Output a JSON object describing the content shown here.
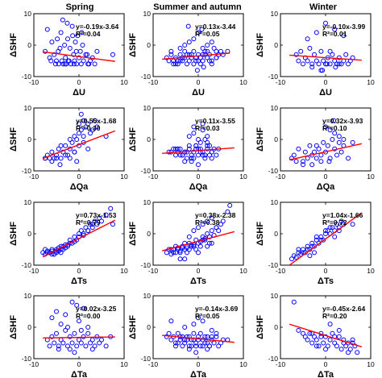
{
  "column_titles": [
    "Spring",
    "Summer and autumn",
    "Winter"
  ],
  "row_xlabels": [
    "ΔU",
    "ΔQa",
    "ΔTs",
    "ΔTa"
  ],
  "ylabel": "ΔSHF",
  "xticks": [
    -10,
    0,
    10
  ],
  "yticks": [
    -10,
    0,
    10
  ],
  "xlim": [
    -10,
    10
  ],
  "ylim": [
    -10,
    10
  ],
  "colors": {
    "points": "#0000ff",
    "fit": "#ff0000",
    "axes": "#000000"
  },
  "chart_data": [
    {
      "type": "scatter",
      "row": 0,
      "col": 0,
      "title": "Spring",
      "xlabel": "ΔU",
      "ylabel": "ΔSHF",
      "slope": -0.19,
      "intercept": -3.64,
      "equation": "y=-0.19x-3.64",
      "r2": "R²=0.04",
      "fit_x": [
        -8,
        8
      ],
      "x": [
        -7.5,
        -7,
        -6.5,
        -6,
        -5.5,
        -5,
        -4.8,
        -4.5,
        -4.2,
        -4,
        -3.8,
        -3.5,
        -3.2,
        -3,
        -2.8,
        -2.5,
        -2.2,
        -2,
        -1.8,
        -1.5,
        -1.2,
        -1,
        -0.8,
        -0.5,
        -0.3,
        0,
        0.3,
        0.5,
        0.8,
        1,
        1.5,
        2,
        2.5,
        3,
        3.5,
        4,
        -3.6,
        -2.6,
        -1.4,
        -0.6,
        0.6,
        1.8,
        -6.2,
        -5.2,
        -3.1,
        -1.1,
        2.2,
        7.5,
        -4.6,
        -2.4
      ],
      "y": [
        -2,
        5,
        -4,
        1,
        -3,
        -5,
        2,
        -6,
        -1,
        4,
        -5,
        -6,
        0,
        -4,
        -6,
        2,
        -5,
        -1,
        -6,
        6,
        -3,
        -5,
        1,
        -6,
        3,
        -4,
        -2,
        -6,
        0,
        -5,
        -3,
        -6,
        -5,
        -4,
        -6,
        -2,
        8,
        7,
        3,
        -2,
        4,
        -3,
        -5,
        -6,
        -6,
        -6,
        -6,
        -3,
        -2,
        -5
      ]
    },
    {
      "type": "scatter",
      "row": 0,
      "col": 1,
      "title": "Summer and autumn",
      "xlabel": "ΔU",
      "ylabel": "ΔSHF",
      "slope": 0.13,
      "intercept": -3.44,
      "equation": "y=0.13x-3.44",
      "r2": "R²=0.05",
      "fit_x": [
        -8,
        7
      ],
      "x": [
        -7,
        -6.5,
        -6,
        -5.5,
        -5,
        -4.5,
        -4,
        -3.5,
        -3,
        -2.5,
        -2,
        -1.5,
        -1,
        -0.5,
        0,
        0.5,
        1,
        1.5,
        2,
        2.5,
        3,
        3.5,
        4,
        4.5,
        5,
        5.5,
        -6,
        -5,
        -4,
        -3,
        -2,
        -1,
        0,
        1,
        2,
        3,
        4,
        -5.5,
        -4.5,
        -3.5,
        -2.5,
        -1.5,
        -0.5,
        0.5,
        1.5,
        2.5,
        -3,
        -1,
        1,
        3,
        0,
        -2,
        2,
        -4,
        4,
        6.5,
        -2.2,
        0.8,
        -0.2,
        1.2
      ],
      "y": [
        -4,
        -5,
        -3,
        -5,
        -4,
        -6,
        -3,
        -5,
        -4,
        -3,
        -5,
        -4,
        -2,
        -5,
        -3,
        -4,
        -5,
        -2,
        -4,
        -3,
        -5,
        -1,
        -4,
        -3,
        -2,
        -3,
        -2,
        -6,
        -5,
        -2,
        -3,
        -6,
        -5,
        -3,
        -2,
        -6,
        -2,
        -6,
        -5,
        -4,
        -6,
        -3,
        -4,
        -6,
        -3,
        -5,
        0,
        2,
        -1,
        1,
        4,
        1,
        0,
        -1,
        -4,
        -2,
        6,
        5,
        -8,
        -7
      ]
    },
    {
      "type": "scatter",
      "row": 0,
      "col": 2,
      "title": "Winter",
      "xlabel": "ΔU",
      "ylabel": "ΔSHF",
      "slope": -0.1,
      "intercept": -3.99,
      "equation": "y=-0.10x-3.99",
      "r2": "R²=0.01",
      "fit_x": [
        -8,
        8
      ],
      "x": [
        -6.5,
        -6,
        -5.5,
        -5,
        -4.5,
        -4,
        -3.5,
        -3,
        -2.5,
        -2,
        -1.5,
        -1,
        -0.5,
        0,
        0.5,
        1,
        1.5,
        2,
        2.5,
        3,
        3.5,
        4,
        4.5,
        5,
        5.5,
        6,
        -4,
        -2,
        0,
        2,
        4,
        -3,
        -1,
        1,
        3,
        0.3,
        -0.7,
        2.2
      ],
      "y": [
        -3,
        -5,
        -2,
        -6,
        -4,
        -5,
        -1,
        -6,
        -3,
        -5,
        -6,
        -2,
        -5,
        -6,
        -4,
        -6,
        -3,
        -5,
        -6,
        -4,
        -6,
        -5,
        -3,
        -6,
        -5,
        -4,
        2,
        4,
        7,
        5,
        3,
        -7,
        -8,
        -2,
        -6,
        -6,
        -8,
        -7
      ]
    },
    {
      "type": "scatter",
      "row": 1,
      "col": 0,
      "title": "",
      "xlabel": "ΔQa",
      "ylabel": "ΔSHF",
      "slope": 0.55,
      "intercept": -1.68,
      "equation": "y=0.55x-1.68",
      "r2": "R²=0.30",
      "fit_x": [
        -8,
        8
      ],
      "x": [
        -7.5,
        -7,
        -6.5,
        -6,
        -5.5,
        -5,
        -4.5,
        -4,
        -3.5,
        -3,
        -2.5,
        -2,
        -1.5,
        -1,
        -0.5,
        0,
        0.5,
        1,
        1.5,
        2,
        2.5,
        3,
        3.5,
        4,
        -6,
        -5,
        -4,
        -3,
        -2,
        -1,
        0,
        1,
        2,
        -2,
        -1,
        0,
        1,
        0.5,
        -0.5,
        6,
        -7.5,
        -4.2
      ],
      "y": [
        -6,
        -5,
        -6,
        -4,
        -6,
        -5,
        -3,
        -6,
        -4,
        -2,
        -5,
        -3,
        -1,
        -4,
        0,
        2,
        3,
        1,
        4,
        5,
        2,
        3,
        6,
        4,
        -7,
        -6,
        -2,
        -5,
        0,
        1,
        -2,
        -1,
        -3,
        -6,
        -4,
        5,
        6,
        8,
        -7,
        1,
        -6,
        -8
      ]
    },
    {
      "type": "scatter",
      "row": 1,
      "col": 1,
      "title": "",
      "xlabel": "ΔQa",
      "ylabel": "ΔSHF",
      "slope": 0.11,
      "intercept": -3.55,
      "equation": "y=0.11x-3.55",
      "r2": "R²=0.03",
      "fit_x": [
        -8,
        8
      ],
      "x": [
        -6,
        -5.5,
        -5,
        -4.5,
        -4,
        -3.5,
        -3,
        -2.5,
        -2,
        -1.5,
        -1,
        -0.5,
        0,
        0.5,
        1,
        1.5,
        2,
        2.5,
        3,
        3.5,
        4,
        -5,
        -4,
        -3,
        -2,
        -1,
        0,
        1,
        2,
        3,
        -4.5,
        -3.5,
        -2.5,
        -1.5,
        -0.5,
        0.5,
        1.5,
        2.5,
        -2,
        -1,
        0,
        1,
        2,
        -3,
        0,
        3,
        -1,
        1,
        0.5,
        -0.5,
        1.5,
        2,
        -1.5,
        4.5,
        -6.5
      ],
      "y": [
        -4,
        -3,
        -5,
        -4,
        -3,
        -5,
        -4,
        -6,
        -3,
        -5,
        -4,
        -2,
        -5,
        -3,
        -4,
        -6,
        -3,
        -5,
        -4,
        -3,
        -5,
        -3,
        -5,
        -4,
        -2,
        -6,
        -3,
        -5,
        -2,
        -4,
        -3,
        -5,
        -4,
        -6,
        -3,
        -4,
        -5,
        -2,
        1,
        2,
        0,
        3,
        1,
        -7,
        -8,
        -6,
        4,
        5,
        -1,
        -2,
        0,
        -1,
        -7,
        -3,
        -4
      ]
    },
    {
      "type": "scatter",
      "row": 1,
      "col": 2,
      "title": "",
      "xlabel": "ΔQa",
      "ylabel": "ΔSHF",
      "slope": 0.32,
      "intercept": -3.93,
      "equation": "y=0.32x-3.93",
      "r2": "R²=0.10",
      "fit_x": [
        -8,
        8
      ],
      "x": [
        -7.5,
        -7,
        -6,
        -5,
        -4.5,
        -4,
        -3.5,
        -3,
        -2.5,
        -2,
        -1.5,
        -1,
        -0.5,
        0,
        0.5,
        1,
        1.5,
        2,
        2.5,
        3,
        3.5,
        4,
        -5,
        -3,
        -1,
        1,
        3,
        -2,
        0,
        2,
        4,
        5,
        6,
        -6.5,
        0.8,
        1.8
      ],
      "y": [
        -6,
        -5,
        -3,
        -7,
        -4,
        -6,
        -2,
        -5,
        -4,
        -6,
        -3,
        -5,
        -1,
        -4,
        -2,
        -6,
        0,
        -3,
        -5,
        -1,
        -4,
        -2,
        -8,
        -8,
        -7,
        3,
        1,
        -2,
        4,
        2,
        0,
        -6,
        -1,
        -7,
        -7,
        6
      ]
    },
    {
      "type": "scatter",
      "row": 2,
      "col": 0,
      "title": "",
      "xlabel": "ΔTs",
      "ylabel": "ΔSHF",
      "slope": 0.73,
      "intercept": -1.53,
      "equation": "y=0.73x-1.53",
      "r2": "R²=0.79",
      "fit_x": [
        -8,
        8
      ],
      "x": [
        -8,
        -7.5,
        -7,
        -6.5,
        -6,
        -5.5,
        -5,
        -4.5,
        -4,
        -3.5,
        -3,
        -2.5,
        -2,
        -1.5,
        -1,
        -0.5,
        0,
        0.5,
        1,
        1.5,
        2,
        2.5,
        3,
        3.5,
        4,
        4.5,
        5,
        6,
        7,
        -7,
        -6,
        -5,
        -4,
        -3,
        -2,
        -1,
        0,
        1,
        2,
        3,
        -7.5,
        -6.5,
        -5.5,
        -4.5,
        -3.5,
        -2.5,
        -6,
        -5,
        -4,
        7.5
      ],
      "y": [
        -6,
        -6.5,
        -5.5,
        -6,
        -5,
        -6.5,
        -5,
        -5.5,
        -4,
        -5,
        -3.5,
        -4,
        -2,
        -3,
        -1,
        -2,
        0,
        1,
        0,
        2,
        1,
        3,
        2,
        4,
        3,
        5,
        4,
        6,
        8,
        -6,
        -5.5,
        -6,
        -5,
        -4.5,
        -3,
        -2.5,
        -1,
        -0.5,
        1,
        3,
        -5,
        -6,
        -6.5,
        -4.5,
        -4,
        -3.5,
        -6.5,
        -5.5,
        -6,
        3
      ]
    },
    {
      "type": "scatter",
      "row": 2,
      "col": 1,
      "title": "",
      "xlabel": "ΔTs",
      "ylabel": "ΔSHF",
      "slope": 0.38,
      "intercept": -2.38,
      "equation": "y=0.38x-2.38",
      "r2": "R²=0.38",
      "fit_x": [
        -8,
        8
      ],
      "x": [
        -7,
        -6.5,
        -6,
        -5.5,
        -5,
        -4.5,
        -4,
        -3.5,
        -3,
        -2.5,
        -2,
        -1.5,
        -1,
        -0.5,
        0,
        0.5,
        1,
        1.5,
        2,
        2.5,
        3,
        3.5,
        4,
        4.5,
        5,
        -6,
        -5,
        -4,
        -3,
        -2,
        -1,
        0,
        1,
        2,
        3,
        -5.5,
        -4.5,
        -3.5,
        -2.5,
        -1.5,
        -0.5,
        0.5,
        1.5,
        2.5,
        0,
        1,
        2,
        -1,
        -2,
        3,
        4,
        5.5,
        6.5,
        7,
        -3,
        -4
      ],
      "y": [
        -6,
        -5,
        -6.5,
        -5,
        -6,
        -4.5,
        -5.5,
        -4,
        -5,
        -4.5,
        -3,
        -4,
        -3.5,
        -2,
        -3,
        -2.5,
        -1,
        -2,
        0,
        -1,
        1,
        -0.5,
        2,
        1,
        3,
        -5,
        -4,
        -6,
        -3,
        -5,
        -4,
        -6,
        -2,
        -4,
        -3,
        -6,
        -5,
        -4.5,
        -6,
        -3.5,
        -5,
        -4,
        -1.5,
        -3,
        2,
        3,
        4,
        1,
        -1,
        5,
        2,
        4,
        7,
        9,
        -8,
        -8
      ]
    },
    {
      "type": "scatter",
      "row": 2,
      "col": 2,
      "title": "",
      "xlabel": "ΔTs",
      "ylabel": "ΔSHF",
      "slope": 1.04,
      "intercept": -1.66,
      "equation": "y=1.04x-1.66",
      "r2": "R²=0.72",
      "fit_x": [
        -8,
        8
      ],
      "x": [
        -7.5,
        -7,
        -6.5,
        -6,
        -5.5,
        -5,
        -4.5,
        -4,
        -3.5,
        -3,
        -2.5,
        -2,
        -1.5,
        -1,
        -0.5,
        0,
        0.5,
        1,
        1.5,
        2,
        2.5,
        3,
        3.5,
        4,
        -6,
        -5,
        -4,
        -3,
        -2,
        -1,
        0,
        1,
        2,
        3,
        6,
        -3.5,
        -2.5
      ],
      "y": [
        -8,
        -7,
        -7.5,
        -6,
        -6.5,
        -5,
        -6,
        -4,
        -5,
        -3,
        -4,
        -2,
        -3,
        -1,
        -2,
        0,
        1,
        0,
        2,
        1,
        3,
        2,
        4,
        3,
        -5,
        -6,
        -5,
        -4,
        -1,
        -2,
        1,
        2,
        -1,
        1,
        3,
        -7,
        -6
      ]
    },
    {
      "type": "scatter",
      "row": 3,
      "col": 0,
      "title": "",
      "xlabel": "ΔTa",
      "ylabel": "ΔSHF",
      "slope": 0.02,
      "intercept": -3.25,
      "equation": "y=0.02x-3.25",
      "r2": "R²=0.00",
      "fit_x": [
        -8,
        8
      ],
      "x": [
        -7,
        -6.5,
        -6,
        -5.5,
        -5,
        -4.5,
        -4,
        -3.5,
        -3,
        -2.5,
        -2,
        -1.5,
        -1,
        -0.5,
        0,
        0.5,
        1,
        1.5,
        2,
        2.5,
        3,
        3.5,
        4,
        4.5,
        5,
        -6,
        -5,
        -4,
        -3,
        -2,
        -1,
        0,
        1,
        2,
        3,
        -1.5,
        -0.5,
        0.5,
        6,
        7,
        -4.5,
        -2.5
      ],
      "y": [
        -4,
        -6,
        -3,
        -5,
        -2,
        -6,
        -4,
        -5,
        -1,
        -6,
        -3,
        -5,
        -2,
        -6,
        -4,
        -5,
        -3,
        -6,
        -2,
        -5,
        -4,
        -6,
        -3,
        -5,
        -4,
        3,
        5,
        1,
        4,
        -7,
        -8,
        2,
        6,
        0,
        -7,
        8,
        7,
        -1,
        -6,
        -3,
        -7,
        0
      ]
    },
    {
      "type": "scatter",
      "row": 3,
      "col": 1,
      "title": "",
      "xlabel": "ΔTa",
      "ylabel": "ΔSHF",
      "slope": -0.14,
      "intercept": -3.69,
      "equation": "y=-0.14x-3.69",
      "r2": "R²=0.05",
      "fit_x": [
        -8,
        8
      ],
      "x": [
        -7,
        -6.5,
        -6,
        -5.5,
        -5,
        -4.5,
        -4,
        -3.5,
        -3,
        -2.5,
        -2,
        -1.5,
        -1,
        -0.5,
        0,
        0.5,
        1,
        1.5,
        2,
        2.5,
        3,
        3.5,
        4,
        4.5,
        5,
        5.5,
        -5,
        -4,
        -3,
        -2,
        -1,
        0,
        1,
        2,
        3,
        4,
        -4.5,
        -3.5,
        -2.5,
        -1.5,
        -0.5,
        0.5,
        1.5,
        2.5,
        -3,
        -1,
        1,
        3,
        0,
        -2,
        2,
        -6,
        6.5,
        -0.5
      ],
      "y": [
        -3,
        -2,
        -4,
        -3,
        -5,
        -2,
        -4,
        -3,
        -5,
        -4,
        -3,
        -6,
        -4,
        -5,
        -3,
        -6,
        -4,
        -5,
        -3,
        -6,
        -4,
        -5,
        -3,
        -6,
        -5,
        -4,
        -6,
        -3,
        -4,
        -6,
        -2,
        -4,
        -6,
        -5,
        -3,
        -2,
        -5,
        -6,
        -3,
        -4,
        -6,
        -2,
        -3,
        -6,
        0,
        1,
        2,
        -1,
        3,
        -7,
        -7,
        2,
        -4,
        -8
      ]
    },
    {
      "type": "scatter",
      "row": 3,
      "col": 2,
      "title": "",
      "xlabel": "ΔTa",
      "ylabel": "ΔSHF",
      "slope": -0.45,
      "intercept": -2.64,
      "equation": "y=-0.45x-2.64",
      "r2": "R²=0.20",
      "fit_x": [
        -8,
        8
      ],
      "x": [
        -7,
        -6,
        -5,
        -4.5,
        -4,
        -3.5,
        -3,
        -2.5,
        -2,
        -1.5,
        -1,
        -0.5,
        0,
        0.5,
        1,
        1.5,
        2,
        2.5,
        3,
        3.5,
        4,
        4.5,
        5,
        5.5,
        6,
        6.5,
        7,
        -2,
        0,
        2,
        4,
        6,
        1,
        3,
        -1,
        -3,
        5
      ],
      "y": [
        8,
        -1,
        -2,
        -3,
        -4,
        -2,
        -5,
        -3,
        -4,
        -6,
        -2,
        -5,
        -3,
        -6,
        -4,
        -2,
        -5,
        -6,
        -3,
        -7,
        -4,
        -6,
        -5,
        -7,
        -4,
        -6,
        -8,
        -6,
        -7,
        -3,
        -5,
        -5,
        1,
        -1,
        -3,
        -2,
        -8
      ]
    }
  ]
}
